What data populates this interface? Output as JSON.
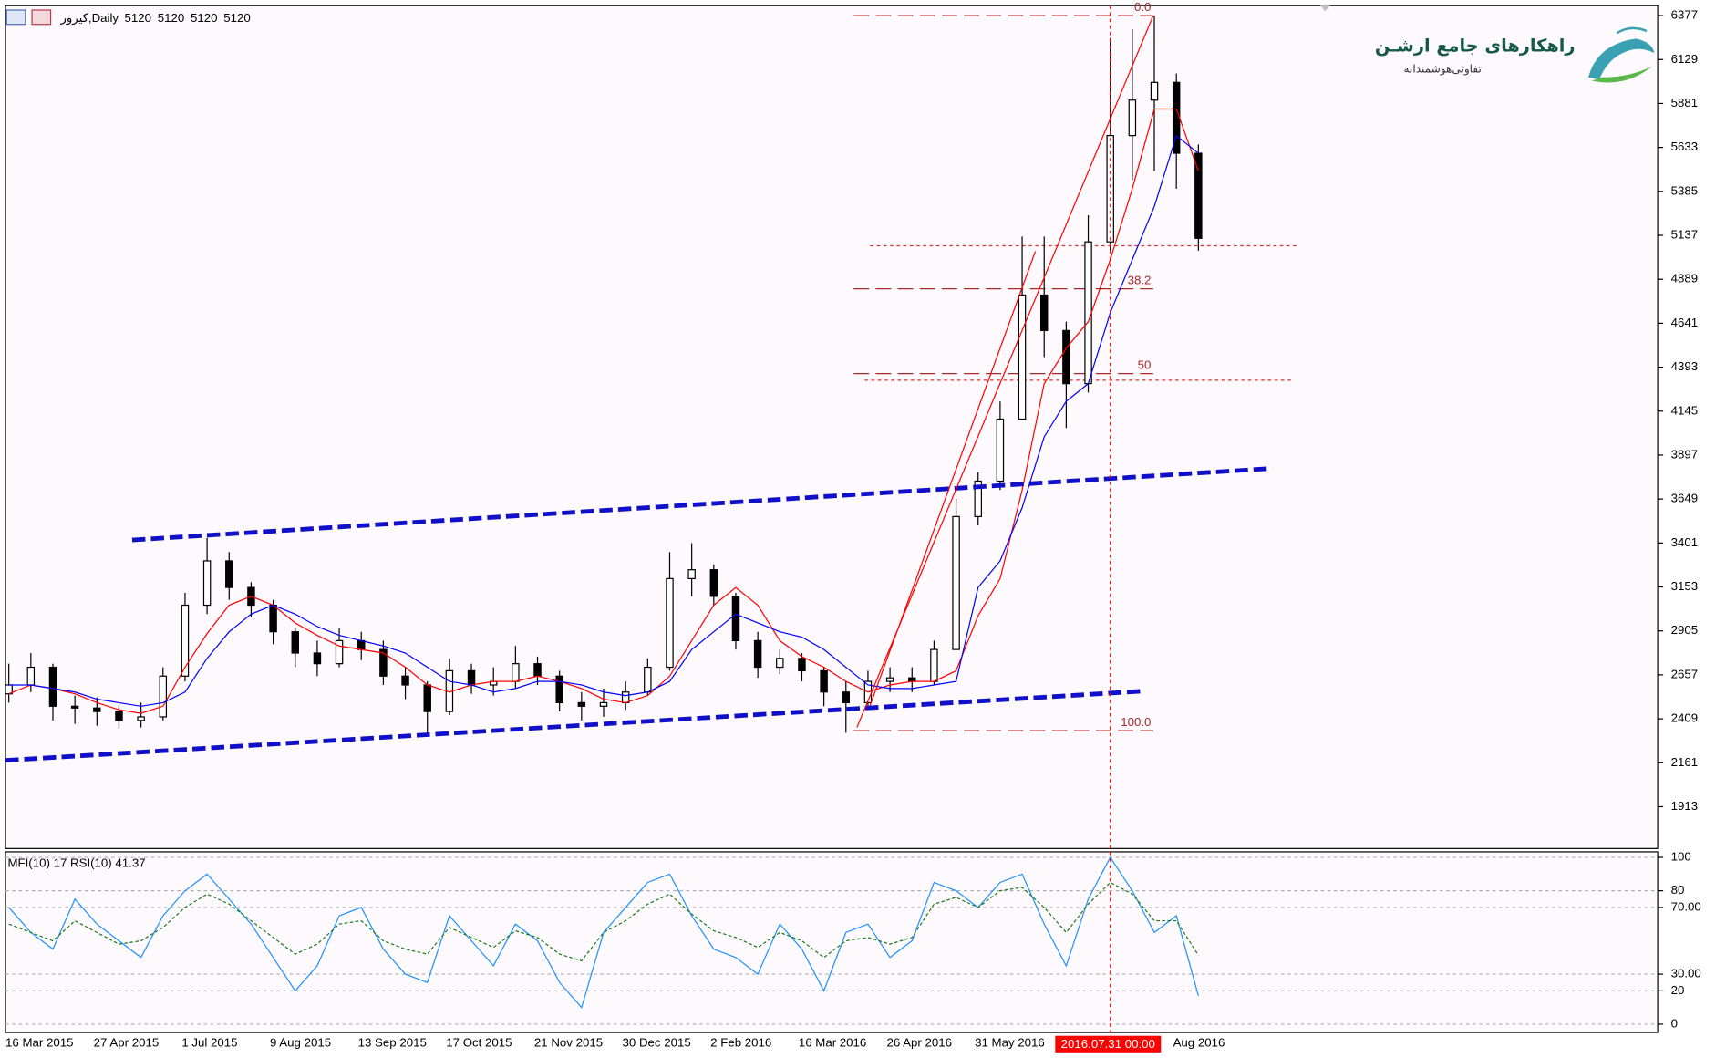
{
  "chart_data": [
    {
      "type": "candlestick",
      "title": "کیرور,Daily",
      "ohlc_header": [
        5120,
        5120,
        5120,
        5120
      ],
      "categories": [
        "16 Mar 2015",
        null,
        null,
        null,
        "27 Apr 2015",
        null,
        null,
        null,
        "1 Jul 2015",
        null,
        null,
        null,
        "9 Aug 2015",
        null,
        null,
        null,
        "13 Sep 2015",
        null,
        null,
        null,
        "17 Oct 2015",
        null,
        null,
        null,
        "21 Nov 2015",
        null,
        null,
        null,
        "30 Dec 2015",
        null,
        null,
        null,
        "2 Feb 2016",
        null,
        null,
        null,
        "16 Mar 2016",
        null,
        null,
        null,
        "26 Apr 2016",
        null,
        null,
        null,
        "31 May 2016",
        null,
        null,
        null,
        null,
        null,
        "2016.07.31 00:00",
        null,
        null,
        "Aug 2016",
        null
      ],
      "open": [
        2550,
        2600,
        2700,
        2480,
        2470,
        2450,
        2400,
        2420,
        2650,
        3050,
        3300,
        3150,
        3050,
        2900,
        2780,
        2720,
        2850,
        2800,
        2650,
        2600,
        2450,
        2680,
        2600,
        2620,
        2720,
        2650,
        2500,
        2480,
        2500,
        2560,
        2700,
        3200,
        3250,
        3100,
        2850,
        2700,
        2750,
        2680,
        2560,
        2500,
        2620,
        2640,
        2620,
        2800,
        3550,
        3750,
        4100,
        4800,
        4600,
        4300,
        5100,
        5700,
        5900,
        6000,
        5600
      ],
      "high": [
        2720,
        2780,
        2720,
        2540,
        2530,
        2480,
        2500,
        2700,
        3120,
        3430,
        3350,
        3180,
        3080,
        2920,
        2850,
        2920,
        2900,
        2850,
        2700,
        2620,
        2750,
        2720,
        2700,
        2820,
        2760,
        2680,
        2560,
        2580,
        2620,
        2750,
        3350,
        3400,
        3280,
        3120,
        2900,
        2800,
        2780,
        2700,
        2620,
        2680,
        2700,
        2700,
        2850,
        3650,
        3800,
        4200,
        5130,
        5130,
        4650,
        5250,
        6250,
        6300,
        6377,
        6050,
        5650
      ],
      "low": [
        2500,
        2560,
        2400,
        2380,
        2370,
        2350,
        2360,
        2400,
        2620,
        3000,
        3080,
        2980,
        2830,
        2700,
        2650,
        2700,
        2740,
        2600,
        2520,
        2330,
        2430,
        2550,
        2540,
        2580,
        2600,
        2450,
        2400,
        2420,
        2460,
        2540,
        2680,
        3100,
        3050,
        2800,
        2640,
        2660,
        2620,
        2480,
        2330,
        2480,
        2560,
        2560,
        2600,
        2800,
        3500,
        3700,
        4100,
        4450,
        4050,
        4250,
        5050,
        5450,
        5500,
        5400,
        5050
      ],
      "close": [
        2600,
        2700,
        2480,
        2470,
        2450,
        2400,
        2420,
        2650,
        3050,
        3300,
        3150,
        3050,
        2900,
        2780,
        2720,
        2850,
        2800,
        2650,
        2600,
        2450,
        2680,
        2600,
        2620,
        2720,
        2650,
        2500,
        2480,
        2500,
        2560,
        2700,
        3200,
        3250,
        3100,
        2850,
        2700,
        2750,
        2680,
        2560,
        2500,
        2620,
        2640,
        2620,
        2800,
        3550,
        3750,
        4100,
        4800,
        4600,
        4300,
        5100,
        5700,
        5900,
        6000,
        5600,
        5120
      ],
      "series": [
        {
          "color": "#ff0000",
          "values": [
            2550,
            2600,
            2580,
            2550,
            2500,
            2460,
            2440,
            2480,
            2700,
            2890,
            3050,
            3100,
            3050,
            2950,
            2880,
            2820,
            2800,
            2780,
            2700,
            2600,
            2560,
            2600,
            2620,
            2620,
            2650,
            2620,
            2580,
            2520,
            2500,
            2540,
            2650,
            2850,
            3050,
            3150,
            3050,
            2850,
            2760,
            2700,
            2620,
            2560,
            2600,
            2620,
            2620,
            2680,
            2990,
            3200,
            3700,
            4300,
            4500,
            4650,
            5000,
            5400,
            5850,
            5850,
            5500
          ]
        },
        {
          "color": "#0000ff",
          "values": [
            2600,
            2600,
            2580,
            2560,
            2520,
            2500,
            2480,
            2500,
            2560,
            2750,
            2900,
            3000,
            3050,
            3000,
            2930,
            2880,
            2850,
            2820,
            2780,
            2700,
            2620,
            2600,
            2560,
            2580,
            2620,
            2620,
            2600,
            2560,
            2540,
            2560,
            2620,
            2800,
            2900,
            3000,
            2950,
            2900,
            2870,
            2800,
            2700,
            2600,
            2580,
            2580,
            2600,
            2620,
            3150,
            3300,
            3600,
            4000,
            4200,
            4300,
            4700,
            5000,
            5300,
            5700,
            5600
          ]
        }
      ],
      "ylim": [
        1677,
        6433
      ],
      "yticks": [
        6377,
        6129,
        5881,
        5633,
        5385,
        5137,
        4889,
        4641,
        4393,
        4145,
        3897,
        3649,
        3401,
        3153,
        2905,
        2657,
        2409,
        2161,
        1913
      ],
      "fib_labels": [
        "0.0",
        "38.2",
        "50",
        "100.0"
      ],
      "crosshair": {
        "category": 50,
        "color": "#ff0000"
      },
      "candle_up_color": "#ffffff",
      "candle_down_color": "#000000"
    },
    {
      "type": "line",
      "title": "MFI(10) 17 RSI(10) 41.37",
      "series": [
        {
          "color": "#1e90ff",
          "dashed": false,
          "values": [
            70,
            55,
            45,
            75,
            60,
            50,
            40,
            65,
            80,
            90,
            75,
            60,
            40,
            20,
            35,
            65,
            70,
            45,
            30,
            25,
            65,
            50,
            35,
            60,
            50,
            25,
            10,
            55,
            70,
            85,
            90,
            65,
            45,
            40,
            30,
            60,
            45,
            20,
            55,
            60,
            40,
            50,
            85,
            80,
            70,
            85,
            90,
            60,
            35,
            75,
            100,
            80,
            55,
            65,
            17
          ]
        },
        {
          "color": "#1a7a1a",
          "dashed": true,
          "values": [
            60,
            55,
            50,
            62,
            55,
            48,
            50,
            58,
            70,
            78,
            72,
            62,
            52,
            42,
            48,
            60,
            62,
            50,
            45,
            42,
            58,
            52,
            46,
            56,
            52,
            42,
            38,
            55,
            62,
            72,
            78,
            66,
            56,
            52,
            46,
            55,
            50,
            40,
            50,
            52,
            48,
            52,
            72,
            76,
            70,
            80,
            82,
            70,
            55,
            72,
            85,
            78,
            62,
            62,
            41.37
          ]
        }
      ],
      "ylim": [
        -5,
        104
      ],
      "yticks": [
        100,
        80,
        {
          "value": 70,
          "label": "70.00"
        },
        {
          "value": 30,
          "label": "30.00"
        },
        20,
        0
      ],
      "grid": true
    }
  ],
  "logo": {
    "title": "راهکارهای جامع ارشـن",
    "tagline": "تفاوتی‌هوشمندانه"
  }
}
